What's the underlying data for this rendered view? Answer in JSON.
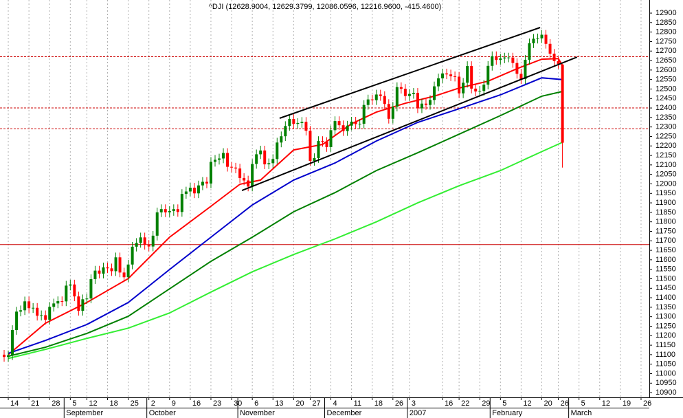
{
  "chart_data": {
    "type": "candlestick",
    "title": "^DJI (12628.9004, 12629.3799, 12086.0596, 12216.9600, -415.4600)",
    "xlim": [
      -1,
      156
    ],
    "ylim": [
      10875,
      12969
    ],
    "yticks": [
      10900,
      10950,
      11000,
      11050,
      11100,
      11150,
      11200,
      11250,
      11300,
      11350,
      11400,
      11450,
      11500,
      11550,
      11600,
      11650,
      11700,
      11750,
      11800,
      11850,
      11900,
      11950,
      12000,
      12050,
      12100,
      12150,
      12200,
      12250,
      12300,
      12350,
      12400,
      12450,
      12500,
      12550,
      12600,
      12650,
      12700,
      12750,
      12800,
      12850,
      12900
    ],
    "xticks": [
      {
        "value": 1,
        "label": "14"
      },
      {
        "value": 6,
        "label": "21"
      },
      {
        "value": 11,
        "label": "28"
      },
      {
        "value": 16,
        "label": "5"
      },
      {
        "value": 20,
        "label": "12"
      },
      {
        "value": 25,
        "label": "18"
      },
      {
        "value": 30,
        "label": "25"
      },
      {
        "value": 35,
        "label": "2"
      },
      {
        "value": 40,
        "label": "9"
      },
      {
        "value": 45,
        "label": "16"
      },
      {
        "value": 50,
        "label": "23"
      },
      {
        "value": 55,
        "label": "30"
      },
      {
        "value": 60,
        "label": "6"
      },
      {
        "value": 65,
        "label": "13"
      },
      {
        "value": 70,
        "label": "20"
      },
      {
        "value": 74,
        "label": "27"
      },
      {
        "value": 79,
        "label": "4"
      },
      {
        "value": 84,
        "label": "11"
      },
      {
        "value": 89,
        "label": "18"
      },
      {
        "value": 94,
        "label": "26"
      },
      {
        "value": 98,
        "label": "3"
      },
      {
        "value": 106,
        "label": "16"
      },
      {
        "value": 110,
        "label": "22"
      },
      {
        "value": 115,
        "label": "29"
      },
      {
        "value": 120,
        "label": "5"
      },
      {
        "value": 125,
        "label": "12"
      },
      {
        "value": 130,
        "label": "20"
      },
      {
        "value": 134,
        "label": "26"
      },
      {
        "value": 139,
        "label": "5"
      },
      {
        "value": 144,
        "label": "12"
      },
      {
        "value": 149,
        "label": "19"
      },
      {
        "value": 154,
        "label": "26"
      }
    ],
    "months": [
      {
        "value": 15,
        "label": "September"
      },
      {
        "value": 35,
        "label": "October"
      },
      {
        "value": 57,
        "label": "November"
      },
      {
        "value": 78,
        "label": "December"
      },
      {
        "value": 98,
        "label": "2007"
      },
      {
        "value": 118,
        "label": "February"
      },
      {
        "value": 137,
        "label": "March"
      }
    ],
    "up_color": "#008000",
    "down_color": "#ff0000",
    "candles": {
      "open": [
        11100,
        11088,
        11097,
        11230,
        11327,
        11334,
        11381,
        11345,
        11347,
        11305,
        11308,
        11284,
        11352,
        11370,
        11382,
        11381,
        11464,
        11470,
        11407,
        11331,
        11392,
        11396,
        11498,
        11543,
        11527,
        11560,
        11555,
        11540,
        11613,
        11533,
        11508,
        11575,
        11669,
        11689,
        11718,
        11679,
        11670,
        11727,
        11850,
        11867,
        11850,
        11857,
        11867,
        11852,
        11947,
        11960,
        11980,
        11950,
        11992,
        12011,
        12002,
        12116,
        12127,
        12134,
        12163,
        12090,
        12086,
        12081,
        12031,
        12018,
        11986,
        12105,
        12156,
        12176,
        12103,
        12109,
        12131,
        12218,
        12251,
        12305,
        12342,
        12316,
        12321,
        12327,
        12280,
        12121,
        12136,
        12226,
        12221,
        12194,
        12283,
        12331,
        12309,
        12278,
        12307,
        12328,
        12315,
        12317,
        12416,
        12445,
        12441,
        12471,
        12463,
        12421,
        12343,
        12407,
        12510,
        12501,
        12463,
        12474,
        12480,
        12398,
        12423,
        12416,
        12442,
        12514,
        12556,
        12582,
        12577,
        12567,
        12565,
        12477,
        12533,
        12621,
        12502,
        12487,
        12490,
        12523,
        12622,
        12673,
        12653,
        12661,
        12666,
        12666,
        12637,
        12580,
        12552,
        12654,
        12741,
        12765,
        12767,
        12786,
        12738,
        12686,
        12647,
        12628.9
      ],
      "high": [
        11125,
        11122,
        11255,
        11352,
        11359,
        11406,
        11406,
        11372,
        11372,
        11333,
        11333,
        11377,
        11395,
        11407,
        11407,
        11489,
        11495,
        11495,
        11432,
        11417,
        11421,
        11523,
        11568,
        11568,
        11585,
        11585,
        11580,
        11638,
        11638,
        11558,
        11600,
        11694,
        11714,
        11743,
        11743,
        11704,
        11752,
        11875,
        11892,
        11892,
        11882,
        11892,
        11892,
        11972,
        11985,
        12005,
        12005,
        12017,
        12036,
        12036,
        12141,
        12152,
        12159,
        12188,
        12188,
        12115,
        12111,
        12106,
        12056,
        12043,
        12130,
        12181,
        12201,
        12201,
        12134,
        12156,
        12243,
        12276,
        12330,
        12367,
        12367,
        12346,
        12352,
        12352,
        12305,
        12161,
        12251,
        12251,
        12246,
        12308,
        12356,
        12356,
        12334,
        12332,
        12353,
        12353,
        12342,
        12441,
        12470,
        12470,
        12496,
        12496,
        12488,
        12446,
        12432,
        12535,
        12535,
        12526,
        12499,
        12505,
        12505,
        12448,
        12448,
        12467,
        12539,
        12581,
        12607,
        12607,
        12602,
        12592,
        12590,
        12558,
        12646,
        12646,
        12527,
        12515,
        12548,
        12647,
        12698,
        12698,
        12686,
        12691,
        12691,
        12691,
        12662,
        12605,
        12679,
        12766,
        12790,
        12792,
        12811,
        12811,
        12763,
        12711,
        12672,
        12629.38
      ],
      "low": [
        11063,
        11063,
        11072,
        11205,
        11302,
        11309,
        11320,
        11320,
        11280,
        11280,
        11259,
        11259,
        11327,
        11345,
        11356,
        11356,
        11439,
        11382,
        11306,
        11306,
        11367,
        11371,
        11473,
        11502,
        11502,
        11530,
        11515,
        11515,
        11508,
        11483,
        11483,
        11550,
        11644,
        11664,
        11654,
        11645,
        11645,
        11702,
        11825,
        11825,
        11825,
        11832,
        11827,
        11827,
        11922,
        11935,
        11925,
        11925,
        11967,
        11977,
        11977,
        12091,
        12102,
        12109,
        12065,
        12061,
        12056,
        12006,
        11993,
        11961,
        11961,
        12080,
        12131,
        12078,
        12078,
        12084,
        12106,
        12193,
        12226,
        12280,
        12291,
        12291,
        12296,
        12255,
        12096,
        12096,
        12111,
        12196,
        12169,
        12169,
        12258,
        12284,
        12253,
        12253,
        12282,
        12290,
        12290,
        12292,
        12391,
        12416,
        12416,
        12438,
        12396,
        12318,
        12318,
        12382,
        12476,
        12438,
        12438,
        12449,
        12373,
        12373,
        12391,
        12391,
        12417,
        12489,
        12531,
        12552,
        12542,
        12540,
        12452,
        12452,
        12508,
        12477,
        12462,
        12462,
        12465,
        12498,
        12597,
        12628,
        12628,
        12636,
        12641,
        12612,
        12555,
        12527,
        12527,
        12629,
        12716,
        12740,
        12742,
        12713,
        12661,
        12622,
        12607,
        12086.06
      ],
      "close": [
        11088,
        11097,
        11230,
        11327,
        11334,
        11381,
        11345,
        11347,
        11305,
        11308,
        11284,
        11352,
        11370,
        11382,
        11381,
        11464,
        11470,
        11407,
        11331,
        11392,
        11396,
        11498,
        11543,
        11527,
        11560,
        11555,
        11540,
        11613,
        11533,
        11508,
        11575,
        11669,
        11689,
        11718,
        11679,
        11670,
        11727,
        11850,
        11867,
        11850,
        11857,
        11867,
        11852,
        11947,
        11960,
        11980,
        11950,
        11992,
        12011,
        12002,
        12116,
        12127,
        12134,
        12163,
        12090,
        12086,
        12081,
        12031,
        12018,
        11986,
        12105,
        12156,
        12176,
        12103,
        12109,
        12131,
        12218,
        12251,
        12305,
        12342,
        12316,
        12321,
        12327,
        12280,
        12121,
        12136,
        12226,
        12221,
        12194,
        12283,
        12331,
        12309,
        12278,
        12307,
        12328,
        12315,
        12317,
        12416,
        12445,
        12441,
        12471,
        12463,
        12421,
        12343,
        12407,
        12510,
        12501,
        12463,
        12474,
        12480,
        12398,
        12423,
        12416,
        12442,
        12514,
        12556,
        12582,
        12577,
        12567,
        12565,
        12477,
        12533,
        12621,
        12502,
        12487,
        12490,
        12523,
        12622,
        12673,
        12653,
        12661,
        12666,
        12666,
        12637,
        12580,
        12552,
        12654,
        12741,
        12765,
        12767,
        12786,
        12738,
        12686,
        12647,
        12632,
        12216.96
      ]
    },
    "lines": [
      {
        "color": "#ff0000",
        "x": [
          1,
          10,
          20,
          30,
          40,
          50,
          57,
          62,
          70,
          77,
          84,
          90,
          97,
          104,
          110,
          117,
          124,
          130,
          134,
          135
        ],
        "values": [
          11100,
          11266,
          11375,
          11501,
          11719,
          11882,
          11998,
          12020,
          12179,
          12208,
          12317,
          12378,
          12425,
          12462,
          12505,
          12541,
          12607,
          12657,
          12660,
          12625
        ]
      },
      {
        "color": "#0000cc",
        "x": [
          1,
          10,
          20,
          30,
          40,
          50,
          60,
          70,
          80,
          90,
          100,
          110,
          120,
          130,
          135
        ],
        "values": [
          11107,
          11175,
          11259,
          11375,
          11549,
          11719,
          11889,
          12020,
          12110,
          12226,
          12324,
          12396,
          12469,
          12559,
          12550
        ]
      },
      {
        "color": "#008000",
        "x": [
          1,
          10,
          20,
          30,
          40,
          50,
          60,
          70,
          80,
          90,
          100,
          110,
          120,
          130,
          135
        ],
        "values": [
          11092,
          11139,
          11212,
          11302,
          11447,
          11592,
          11719,
          11853,
          11954,
          12070,
          12164,
          12262,
          12360,
          12462,
          12487
        ]
      },
      {
        "color": "#33ee33",
        "x": [
          1,
          10,
          20,
          30,
          40,
          50,
          60,
          70,
          80,
          90,
          100,
          110,
          120,
          130,
          135
        ],
        "values": [
          11080,
          11128,
          11186,
          11240,
          11320,
          11430,
          11537,
          11628,
          11710,
          11800,
          11900,
          11990,
          12070,
          12170,
          12219
        ]
      }
    ],
    "trendlines": [
      {
        "color": "#000000",
        "x": [
          66.6,
          129.6
        ],
        "values": [
          12346,
          12824
        ]
      },
      {
        "color": "#000000",
        "x": [
          57.5,
          138.5
        ],
        "values": [
          11965,
          12668
        ]
      }
    ],
    "hlines": [
      {
        "value": 12670,
        "color": "#cc0000",
        "dashed": true
      },
      {
        "value": 12400,
        "color": "#cc0000",
        "dashed": true
      },
      {
        "value": 12290,
        "color": "#cc0000",
        "dashed": true
      },
      {
        "value": 11680,
        "color": "#cc0000",
        "dashed": false
      }
    ]
  }
}
